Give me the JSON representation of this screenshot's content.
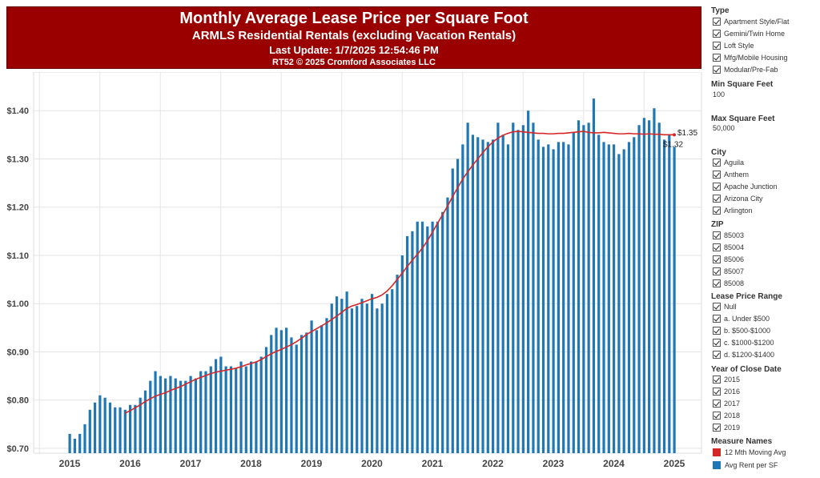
{
  "header": {
    "title": "Monthly Average Lease Price per Square Foot",
    "subtitle": "ARMLS Residential Rentals (excluding Vacation Rentals)",
    "update": "Last Update: 1/7/2025 12:54:46 PM",
    "credit": "RT52 © 2025 Cromford Associates LLC"
  },
  "sidebar": {
    "type": {
      "title": "Type",
      "items": [
        "Apartment Style/Flat",
        "Gemini/Twin Home",
        "Loft Style",
        "Mfg/Mobile Housing",
        "Modular/Pre-Fab"
      ]
    },
    "min_sqft": {
      "title": "Min Square Feet",
      "value": "100"
    },
    "max_sqft": {
      "title": "Max Square Feet",
      "value": "50,000"
    },
    "city": {
      "title": "City",
      "items": [
        "Aguila",
        "Anthem",
        "Apache Junction",
        "Arizona City",
        "Arlington"
      ]
    },
    "zip": {
      "title": "ZIP",
      "items": [
        "85003",
        "85004",
        "85006",
        "85007",
        "85008"
      ]
    },
    "lease_range": {
      "title": "Lease Price Range",
      "items": [
        "Null",
        "a. Under $500",
        "b. $500-$1000",
        "c. $1000-$1200",
        "d. $1200-$1400"
      ]
    },
    "year": {
      "title": "Year of Close Date",
      "items": [
        "2015",
        "2016",
        "2017",
        "2018",
        "2019"
      ]
    },
    "measures": {
      "title": "Measure Names",
      "items": [
        {
          "label": "12 Mth Moving Avg",
          "color": "#d62728"
        },
        {
          "label": "Avg Rent per SF",
          "color": "#1f77b4"
        }
      ]
    }
  },
  "chart_data": {
    "type": "bar",
    "x_start": "2015-01",
    "xlabels": [
      "2015",
      "2016",
      "2017",
      "2018",
      "2019",
      "2020",
      "2021",
      "2022",
      "2023",
      "2024",
      "2025"
    ],
    "ylim": [
      0.69,
      1.48
    ],
    "yticks": [
      0.7,
      0.8,
      0.9,
      1.0,
      1.1,
      1.2,
      1.3,
      1.4
    ],
    "ytick_labels": [
      "$0.70",
      "$0.80",
      "$0.90",
      "$1.00",
      "$1.10",
      "$1.20",
      "$1.30",
      "$1.40"
    ],
    "grid": true,
    "series": [
      {
        "name": "Avg Rent per SF",
        "type": "bar",
        "color": "#1f77b4",
        "values": [
          0.73,
          0.72,
          0.73,
          0.75,
          0.78,
          0.795,
          0.81,
          0.805,
          0.795,
          0.785,
          0.785,
          0.78,
          0.79,
          0.79,
          0.805,
          0.82,
          0.84,
          0.86,
          0.85,
          0.845,
          0.85,
          0.845,
          0.84,
          0.84,
          0.85,
          0.845,
          0.86,
          0.86,
          0.87,
          0.885,
          0.89,
          0.87,
          0.87,
          0.865,
          0.88,
          0.87,
          0.88,
          0.88,
          0.89,
          0.91,
          0.935,
          0.95,
          0.945,
          0.95,
          0.93,
          0.915,
          0.935,
          0.94,
          0.965,
          0.945,
          0.955,
          0.97,
          1.0,
          1.015,
          1.01,
          1.025,
          0.99,
          0.995,
          1.01,
          1.0,
          1.02,
          0.99,
          1.0,
          1.02,
          1.03,
          1.06,
          1.1,
          1.14,
          1.15,
          1.17,
          1.17,
          1.16,
          1.17,
          1.17,
          1.19,
          1.22,
          1.28,
          1.3,
          1.33,
          1.375,
          1.35,
          1.345,
          1.34,
          1.335,
          1.34,
          1.375,
          1.35,
          1.33,
          1.375,
          1.36,
          1.37,
          1.4,
          1.375,
          1.34,
          1.325,
          1.33,
          1.32,
          1.335,
          1.335,
          1.33,
          1.355,
          1.38,
          1.37,
          1.375,
          1.425,
          1.35,
          1.335,
          1.33,
          1.33,
          1.31,
          1.32,
          1.335,
          1.345,
          1.37,
          1.385,
          1.38,
          1.405,
          1.375,
          1.34,
          1.35,
          1.325
        ]
      },
      {
        "name": "12 Mth Moving Avg",
        "type": "line",
        "color": "#d62728",
        "start_index": 11,
        "values": [
          0.773,
          0.778,
          0.784,
          0.79,
          0.797,
          0.803,
          0.808,
          0.812,
          0.815,
          0.82,
          0.824,
          0.828,
          0.833,
          0.838,
          0.843,
          0.847,
          0.851,
          0.855,
          0.858,
          0.86,
          0.862,
          0.864,
          0.866,
          0.869,
          0.873,
          0.876,
          0.879,
          0.884,
          0.89,
          0.896,
          0.901,
          0.905,
          0.91,
          0.915,
          0.921,
          0.928,
          0.936,
          0.942,
          0.948,
          0.954,
          0.96,
          0.967,
          0.974,
          0.982,
          0.99,
          0.995,
          0.998,
          1.002,
          1.006,
          1.01,
          1.013,
          1.018,
          1.026,
          1.037,
          1.05,
          1.063,
          1.077,
          1.09,
          1.102,
          1.115,
          1.13,
          1.148,
          1.166,
          1.184,
          1.202,
          1.222,
          1.24,
          1.258,
          1.273,
          1.287,
          1.3,
          1.313,
          1.325,
          1.335,
          1.343,
          1.349,
          1.353,
          1.356,
          1.357,
          1.356,
          1.355,
          1.354,
          1.353,
          1.353,
          1.352,
          1.352,
          1.353,
          1.353,
          1.354,
          1.355,
          1.356,
          1.357,
          1.355,
          1.354,
          1.354,
          1.355,
          1.354,
          1.353,
          1.352,
          1.352,
          1.353,
          1.352,
          1.352,
          1.351,
          1.352,
          1.351,
          1.351,
          1.35,
          1.35,
          1.35
        ]
      }
    ],
    "annotations": [
      "$1.35",
      "$1.32"
    ]
  }
}
